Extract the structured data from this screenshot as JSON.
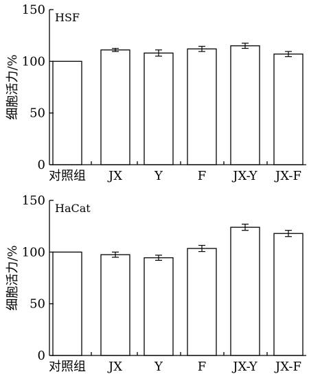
{
  "chart_data": [
    {
      "type": "bar",
      "panel_label": "HSF",
      "ylabel": "细胞活力/%",
      "ylim": [
        0,
        150
      ],
      "yticks": [
        "0",
        "50",
        "100",
        "150"
      ],
      "categories": [
        "对照组",
        "JX",
        "Y",
        "F",
        "JX-Y",
        "JX-F"
      ],
      "values": [
        100,
        111,
        108,
        112,
        115,
        107
      ],
      "errors": [
        0,
        1.5,
        3,
        2.5,
        2.5,
        2.5
      ],
      "grid": false,
      "colors": {
        "bar_fill": "#ffffff",
        "bar_stroke": "#000000"
      }
    },
    {
      "type": "bar",
      "panel_label": "HaCat",
      "ylabel": "细胞活力/%",
      "ylim": [
        0,
        150
      ],
      "yticks": [
        "0",
        "50",
        "100",
        "150"
      ],
      "categories": [
        "对照组",
        "JX",
        "Y",
        "F",
        "JX-Y",
        "JX-F"
      ],
      "values": [
        100,
        97.5,
        94.5,
        103.5,
        124,
        118
      ],
      "errors": [
        0,
        2.5,
        2.5,
        3,
        3,
        3
      ],
      "grid": false,
      "colors": {
        "bar_fill": "#ffffff",
        "bar_stroke": "#000000"
      }
    }
  ]
}
